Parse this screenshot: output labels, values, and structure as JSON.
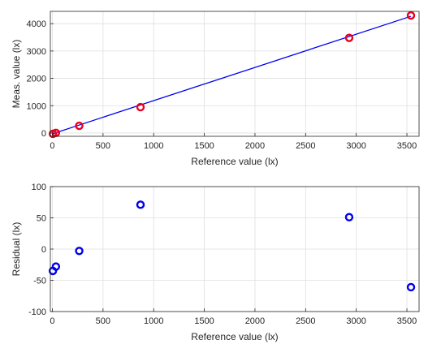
{
  "chart_data": [
    {
      "type": "scatter",
      "title": "",
      "xlabel": "Reference value (lx)",
      "ylabel": "Meas. value (lx)",
      "xlim": [
        -20,
        3620
      ],
      "ylim": [
        -120,
        4450
      ],
      "x_ticks": [
        0,
        500,
        1000,
        1500,
        2000,
        2500,
        3000,
        3500
      ],
      "y_ticks": [
        0,
        1000,
        2000,
        3000,
        4000
      ],
      "grid": true,
      "series": [
        {
          "type": "scatter",
          "color": "#e8001c",
          "marker": "circle-open",
          "x": [
            5,
            35,
            265,
            870,
            2930,
            3540
          ],
          "y": [
            -30,
            5,
            265,
            945,
            3480,
            4300
          ]
        },
        {
          "type": "line",
          "color": "#0000ee",
          "x": [
            0,
            3540
          ],
          "y": [
            -30,
            4270
          ]
        }
      ]
    },
    {
      "type": "scatter",
      "title": "",
      "xlabel": "Reference value (lx)",
      "ylabel": "Residual (lx)",
      "xlim": [
        -20,
        3620
      ],
      "ylim": [
        -100,
        100
      ],
      "x_ticks": [
        0,
        500,
        1000,
        1500,
        2000,
        2500,
        3000,
        3500
      ],
      "y_ticks": [
        -100,
        -50,
        0,
        50,
        100
      ],
      "grid": true,
      "series": [
        {
          "type": "scatter",
          "color": "#0000ee",
          "marker": "circle-open",
          "x": [
            5,
            35,
            265,
            870,
            2930,
            3540
          ],
          "y": [
            -35,
            -28,
            -3,
            71,
            51,
            -61
          ]
        }
      ]
    }
  ]
}
